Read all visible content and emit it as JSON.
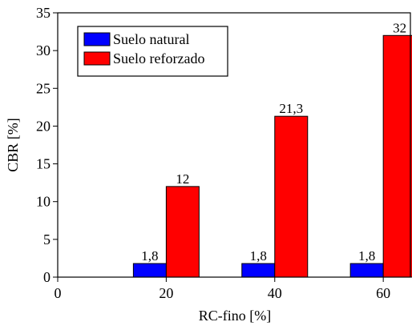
{
  "chart_data": {
    "type": "bar",
    "x_label": "RC-fino [%]",
    "y_label": "CBR [%]",
    "x": [
      20,
      40,
      60
    ],
    "series": [
      {
        "name": "Suelo natural",
        "color": "#0000ff",
        "values": [
          1.8,
          1.8,
          1.8
        ],
        "value_labels": [
          "1,8",
          "1,8",
          "1,8"
        ]
      },
      {
        "name": "Suelo reforzado",
        "color": "#ff0000",
        "values": [
          12,
          21.3,
          32
        ],
        "value_labels": [
          "12",
          "21,3",
          "32"
        ]
      }
    ],
    "xlim": [
      0,
      65
    ],
    "xticks": [
      0,
      20,
      40,
      60
    ],
    "ylim": [
      0,
      35
    ],
    "yticks": [
      0,
      5,
      10,
      15,
      20,
      25,
      30,
      35
    ],
    "legend": "upper left"
  }
}
